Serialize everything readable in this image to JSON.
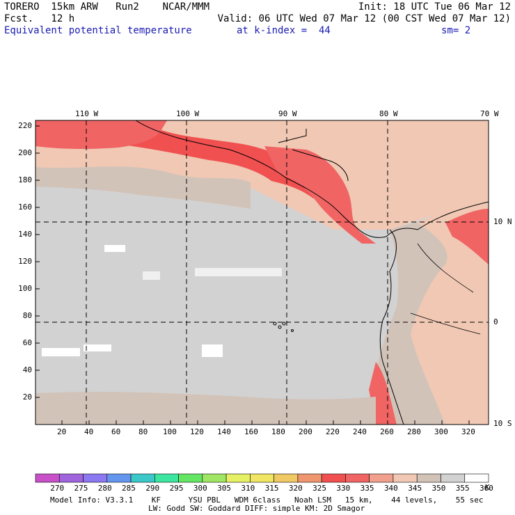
{
  "header": {
    "line1_left": "TORERO  15km ARW   Run2    NCAR/MMM",
    "line1_right": "Init: 18 UTC Tue 06 Mar 12",
    "line2_left": "Fcst.   12 h",
    "line2_right": "Valid: 06 UTC Wed 07 Mar 12 (00 CST Wed 07 Mar 12)",
    "field_name": "Equivalent potential temperature",
    "level_text": "at k-index =  44",
    "smooth_text": "sm= 2"
  },
  "map": {
    "top_lon_labels": [
      "110 W",
      "100 W",
      "90 W",
      "80 W",
      "70 W"
    ],
    "right_lat_labels": [
      "10 N",
      "0",
      "10 S"
    ],
    "y_ticks": [
      "220",
      "200",
      "180",
      "160",
      "140",
      "120",
      "100",
      "80",
      "60",
      "40",
      "20"
    ],
    "x_ticks": [
      "20",
      "40",
      "60",
      "80",
      "100",
      "120",
      "140",
      "160",
      "180",
      "200",
      "220",
      "240",
      "260",
      "280",
      "300",
      "320"
    ]
  },
  "legend": {
    "values": [
      "270",
      "275",
      "280",
      "285",
      "290",
      "295",
      "300",
      "305",
      "310",
      "315",
      "320",
      "325",
      "330",
      "335",
      "340",
      "345",
      "350",
      "355",
      "360"
    ],
    "unit": "K",
    "colors": [
      "#c850c8",
      "#a064dc",
      "#8c78f0",
      "#6496f0",
      "#3cc8c8",
      "#3ce6a0",
      "#64e664",
      "#a0e664",
      "#e6f064",
      "#f0e664",
      "#f0c864",
      "#f0966e",
      "#f05050",
      "#f06464",
      "#f0a08c",
      "#f0c8b4",
      "#d2c3b9",
      "#d2d2d2",
      "#ffffff"
    ]
  },
  "footer": {
    "line1": "Model Info: V3.3.1    KF      YSU PBL   WDM 6class   Noah LSM   15 km,    44 levels,    55 sec",
    "line2": "LW: Godd SW: Goddard DIFF: simple KM: 2D Smagor"
  }
}
